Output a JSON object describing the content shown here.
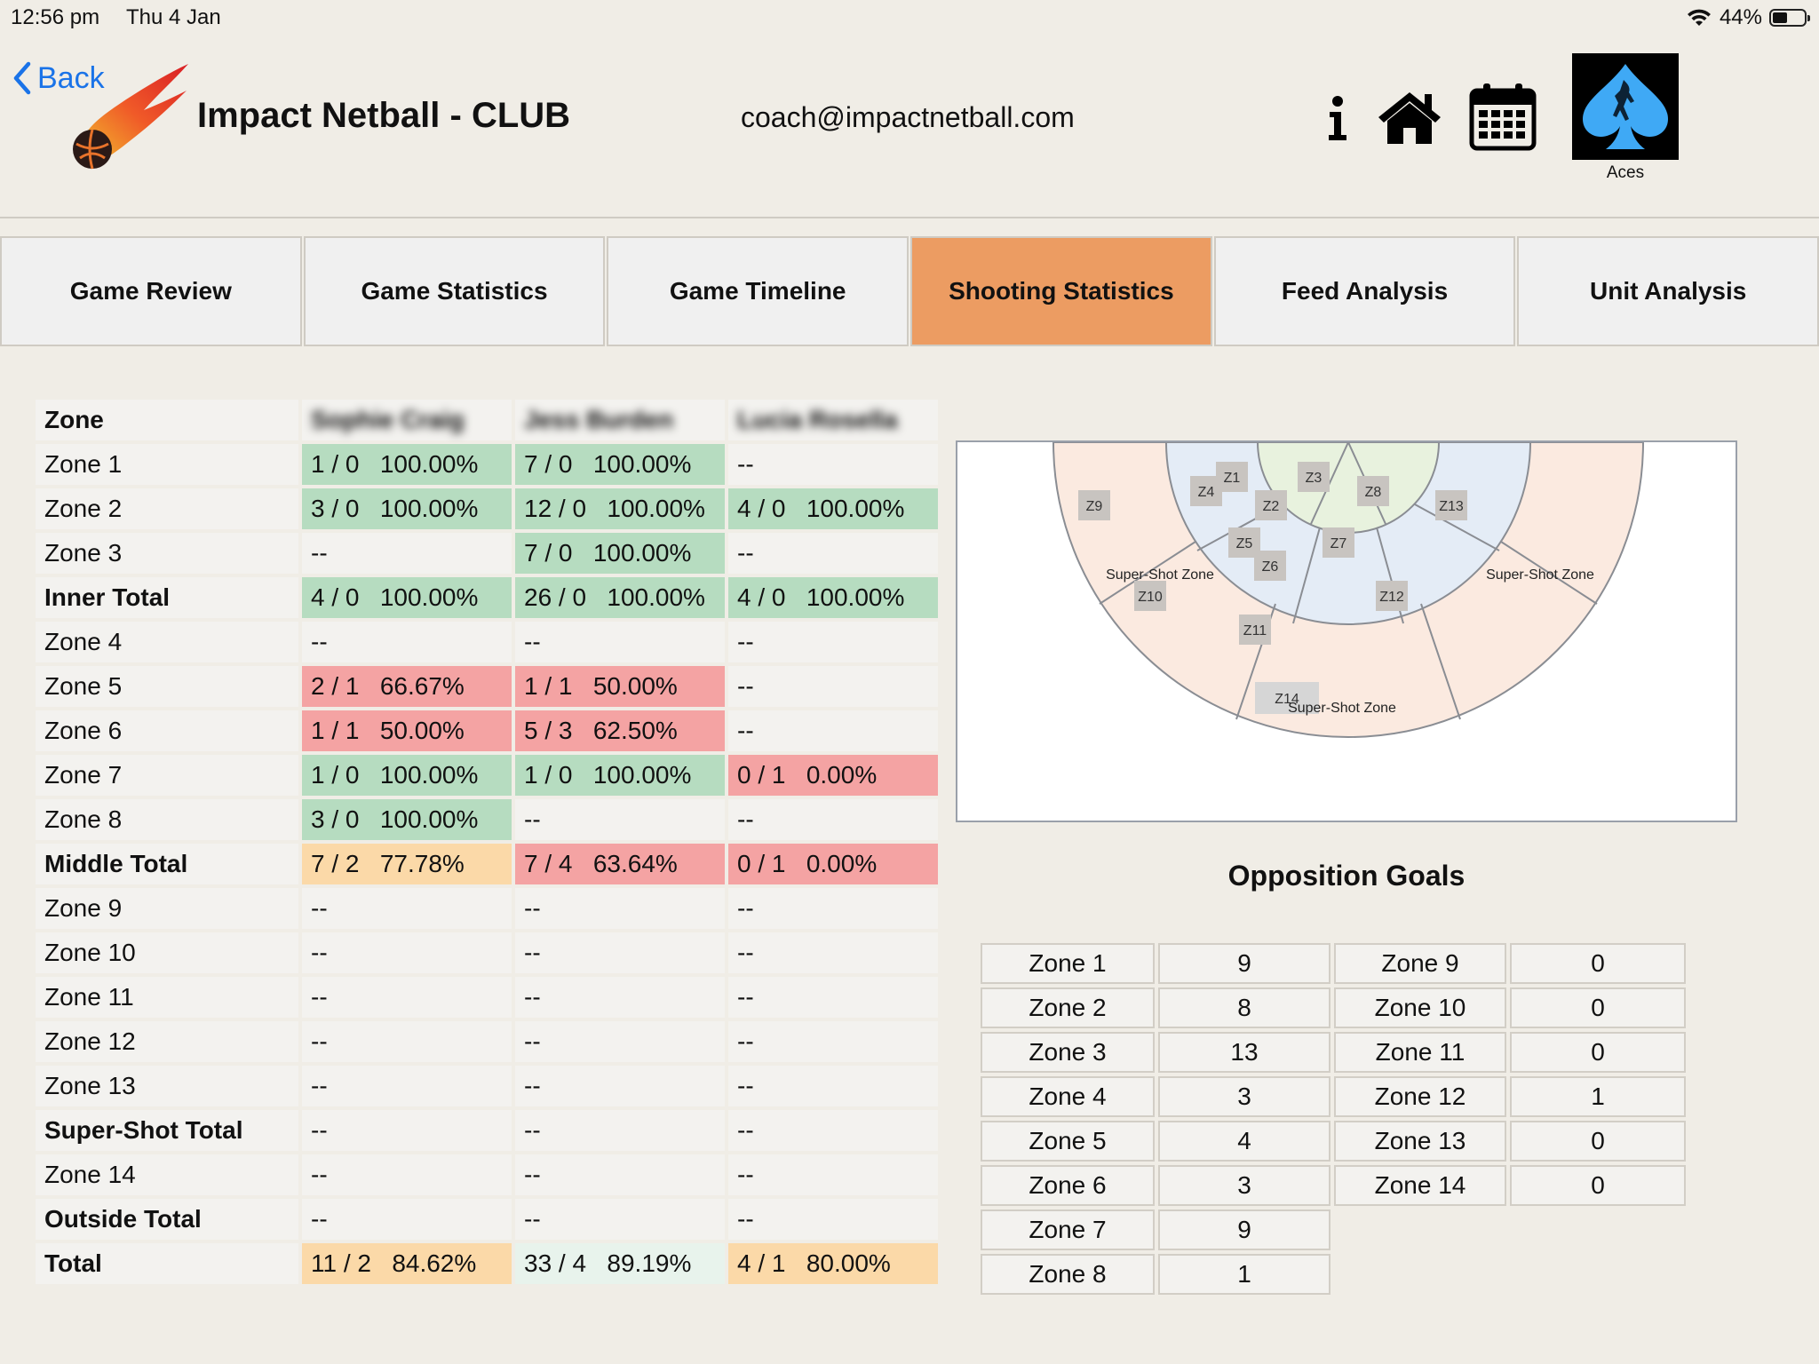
{
  "status_bar": {
    "time": "12:56 pm",
    "date": "Thu 4 Jan",
    "battery": "44%"
  },
  "header": {
    "back_label": "Back",
    "title": "Impact Netball - CLUB",
    "email": "coach@impactnetball.com",
    "team_name": "Aces",
    "icons": [
      "info-icon",
      "home-icon",
      "calendar-icon"
    ]
  },
  "tabs": [
    {
      "label": "Game Review",
      "active": false
    },
    {
      "label": "Game Statistics",
      "active": false
    },
    {
      "label": "Game Timeline",
      "active": false
    },
    {
      "label": "Shooting Statistics",
      "active": true
    },
    {
      "label": "Feed Analysis",
      "active": false
    },
    {
      "label": "Unit Analysis",
      "active": false
    }
  ],
  "shooting_table": {
    "header": [
      "Zone",
      "Sophie Craig",
      "Jess Burden",
      "Lucia Rosella"
    ],
    "rows": [
      {
        "zone": "Zone 1",
        "bold": false,
        "cells": [
          {
            "text": "1 / 0   100.00%",
            "c": "g"
          },
          {
            "text": "7 / 0   100.00%",
            "c": "g"
          },
          {
            "text": "--",
            "c": "n"
          }
        ]
      },
      {
        "zone": "Zone 2",
        "bold": false,
        "cells": [
          {
            "text": "3 / 0   100.00%",
            "c": "g"
          },
          {
            "text": "12 / 0   100.00%",
            "c": "g"
          },
          {
            "text": "4 / 0   100.00%",
            "c": "g"
          }
        ]
      },
      {
        "zone": "Zone 3",
        "bold": false,
        "cells": [
          {
            "text": "--",
            "c": "n"
          },
          {
            "text": "7 / 0   100.00%",
            "c": "g"
          },
          {
            "text": "--",
            "c": "n"
          }
        ]
      },
      {
        "zone": "Inner Total",
        "bold": true,
        "cells": [
          {
            "text": "4 / 0   100.00%",
            "c": "g"
          },
          {
            "text": "26 / 0   100.00%",
            "c": "g"
          },
          {
            "text": "4 / 0   100.00%",
            "c": "g"
          }
        ]
      },
      {
        "zone": "Zone 4",
        "bold": false,
        "cells": [
          {
            "text": "--",
            "c": "n"
          },
          {
            "text": "--",
            "c": "n"
          },
          {
            "text": "--",
            "c": "n"
          }
        ]
      },
      {
        "zone": "Zone 5",
        "bold": false,
        "cells": [
          {
            "text": "2 / 1   66.67%",
            "c": "r"
          },
          {
            "text": "1 / 1   50.00%",
            "c": "r"
          },
          {
            "text": "--",
            "c": "n"
          }
        ]
      },
      {
        "zone": "Zone 6",
        "bold": false,
        "cells": [
          {
            "text": "1 / 1   50.00%",
            "c": "r"
          },
          {
            "text": "5 / 3   62.50%",
            "c": "r"
          },
          {
            "text": "--",
            "c": "n"
          }
        ]
      },
      {
        "zone": "Zone 7",
        "bold": false,
        "cells": [
          {
            "text": "1 / 0   100.00%",
            "c": "g"
          },
          {
            "text": "1 / 0   100.00%",
            "c": "g"
          },
          {
            "text": "0 / 1   0.00%",
            "c": "r"
          }
        ]
      },
      {
        "zone": "Zone 8",
        "bold": false,
        "cells": [
          {
            "text": "3 / 0   100.00%",
            "c": "g"
          },
          {
            "text": "--",
            "c": "n"
          },
          {
            "text": "--",
            "c": "n"
          }
        ]
      },
      {
        "zone": "Middle Total",
        "bold": true,
        "cells": [
          {
            "text": "7 / 2   77.78%",
            "c": "o"
          },
          {
            "text": "7 / 4   63.64%",
            "c": "r"
          },
          {
            "text": "0 / 1   0.00%",
            "c": "r"
          }
        ]
      },
      {
        "zone": "Zone 9",
        "bold": false,
        "cells": [
          {
            "text": "--",
            "c": "n"
          },
          {
            "text": "--",
            "c": "n"
          },
          {
            "text": "--",
            "c": "n"
          }
        ]
      },
      {
        "zone": "Zone 10",
        "bold": false,
        "cells": [
          {
            "text": "--",
            "c": "n"
          },
          {
            "text": "--",
            "c": "n"
          },
          {
            "text": "--",
            "c": "n"
          }
        ]
      },
      {
        "zone": "Zone 11",
        "bold": false,
        "cells": [
          {
            "text": "--",
            "c": "n"
          },
          {
            "text": "--",
            "c": "n"
          },
          {
            "text": "--",
            "c": "n"
          }
        ]
      },
      {
        "zone": "Zone 12",
        "bold": false,
        "cells": [
          {
            "text": "--",
            "c": "n"
          },
          {
            "text": "--",
            "c": "n"
          },
          {
            "text": "--",
            "c": "n"
          }
        ]
      },
      {
        "zone": "Zone 13",
        "bold": false,
        "cells": [
          {
            "text": "--",
            "c": "n"
          },
          {
            "text": "--",
            "c": "n"
          },
          {
            "text": "--",
            "c": "n"
          }
        ]
      },
      {
        "zone": "Super-Shot Total",
        "bold": true,
        "cells": [
          {
            "text": "--",
            "c": "n"
          },
          {
            "text": "--",
            "c": "n"
          },
          {
            "text": "--",
            "c": "n"
          }
        ]
      },
      {
        "zone": "Zone 14",
        "bold": false,
        "cells": [
          {
            "text": "--",
            "c": "n"
          },
          {
            "text": "--",
            "c": "n"
          },
          {
            "text": "--",
            "c": "n"
          }
        ]
      },
      {
        "zone": "Outside Total",
        "bold": true,
        "cells": [
          {
            "text": "--",
            "c": "n"
          },
          {
            "text": "--",
            "c": "n"
          },
          {
            "text": "--",
            "c": "n"
          }
        ]
      },
      {
        "zone": "Total",
        "bold": true,
        "cells": [
          {
            "text": "11 / 2   84.62%",
            "c": "o"
          },
          {
            "text": "33 / 4   89.19%",
            "c": "lg"
          },
          {
            "text": "4 / 1   80.00%",
            "c": "o"
          }
        ]
      }
    ]
  },
  "court": {
    "zones": [
      "Z1",
      "Z2",
      "Z3",
      "Z4",
      "Z5",
      "Z6",
      "Z7",
      "Z8",
      "Z9",
      "Z10",
      "Z11",
      "Z12",
      "Z13",
      "Z14"
    ],
    "super_shot_label": "Super-Shot Zone"
  },
  "opposition": {
    "title": "Opposition Goals",
    "left": [
      {
        "zone": "Zone 1",
        "goals": "9"
      },
      {
        "zone": "Zone 2",
        "goals": "8"
      },
      {
        "zone": "Zone 3",
        "goals": "13"
      },
      {
        "zone": "Zone 4",
        "goals": "3"
      },
      {
        "zone": "Zone 5",
        "goals": "4"
      },
      {
        "zone": "Zone 6",
        "goals": "3"
      },
      {
        "zone": "Zone 7",
        "goals": "9"
      },
      {
        "zone": "Zone 8",
        "goals": "1"
      }
    ],
    "right": [
      {
        "zone": "Zone 9",
        "goals": "0"
      },
      {
        "zone": "Zone 10",
        "goals": "0"
      },
      {
        "zone": "Zone 11",
        "goals": "0"
      },
      {
        "zone": "Zone 12",
        "goals": "1"
      },
      {
        "zone": "Zone 13",
        "goals": "0"
      },
      {
        "zone": "Zone 14",
        "goals": "0"
      }
    ]
  },
  "colors": {
    "accent_tab": "#ec9c62",
    "good": "#b6dcc0",
    "bad": "#f4a3a3",
    "mid": "#fbd9a8",
    "link": "#1a73e8",
    "team_badge": "#3fa9f5"
  }
}
